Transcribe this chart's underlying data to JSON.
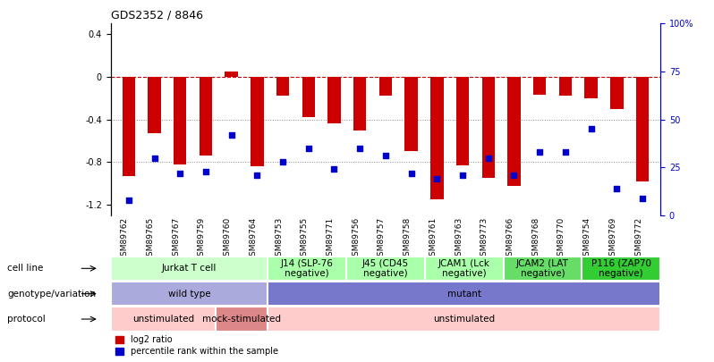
{
  "title": "GDS2352 / 8846",
  "samples": [
    "GSM89762",
    "GSM89765",
    "GSM89767",
    "GSM89759",
    "GSM89760",
    "GSM89764",
    "GSM89753",
    "GSM89755",
    "GSM89771",
    "GSM89756",
    "GSM89757",
    "GSM89758",
    "GSM89761",
    "GSM89763",
    "GSM89773",
    "GSM89766",
    "GSM89768",
    "GSM89770",
    "GSM89754",
    "GSM89769",
    "GSM89772"
  ],
  "log2_ratio": [
    -0.93,
    -0.53,
    -0.82,
    -0.74,
    0.05,
    -0.84,
    -0.18,
    -0.38,
    -0.44,
    -0.5,
    -0.18,
    -0.7,
    -1.15,
    -0.83,
    -0.95,
    -1.02,
    -0.17,
    -0.18,
    -0.2,
    -0.3,
    -0.98
  ],
  "percentile": [
    8,
    30,
    22,
    23,
    42,
    21,
    28,
    35,
    24,
    35,
    31,
    22,
    19,
    21,
    30,
    21,
    33,
    33,
    45,
    14,
    9
  ],
  "ylim_left": [
    -1.3,
    0.5
  ],
  "ylim_right": [
    0,
    100
  ],
  "cell_line_groups": [
    {
      "label": "Jurkat T cell",
      "start": 0,
      "end": 6,
      "color": "#ccffcc"
    },
    {
      "label": "J14 (SLP-76\nnegative)",
      "start": 6,
      "end": 9,
      "color": "#aaffaa"
    },
    {
      "label": "J45 (CD45\nnegative)",
      "start": 9,
      "end": 12,
      "color": "#aaffaa"
    },
    {
      "label": "JCAM1 (Lck\nnegative)",
      "start": 12,
      "end": 15,
      "color": "#aaffaa"
    },
    {
      "label": "JCAM2 (LAT\nnegative)",
      "start": 15,
      "end": 18,
      "color": "#66dd66"
    },
    {
      "label": "P116 (ZAP70\nnegative)",
      "start": 18,
      "end": 21,
      "color": "#33cc33"
    }
  ],
  "genotype_groups": [
    {
      "label": "wild type",
      "start": 0,
      "end": 6,
      "color": "#aaaadd"
    },
    {
      "label": "mutant",
      "start": 6,
      "end": 21,
      "color": "#7777cc"
    }
  ],
  "protocol_groups": [
    {
      "label": "unstimulated",
      "start": 0,
      "end": 4,
      "color": "#ffcccc"
    },
    {
      "label": "mock-stimulated",
      "start": 4,
      "end": 6,
      "color": "#dd8888"
    },
    {
      "label": "unstimulated",
      "start": 6,
      "end": 21,
      "color": "#ffcccc"
    }
  ],
  "bar_color": "#cc0000",
  "dot_color": "#0000cc",
  "hline_color": "#cc0000",
  "grid_color": "#888888",
  "background_color": "#ffffff",
  "right_axis_color": "#0000cc"
}
